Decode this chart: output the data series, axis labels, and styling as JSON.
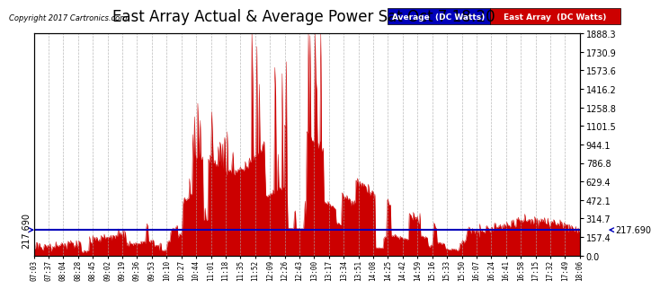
{
  "title": "East Array Actual & Average Power Sat Oct 7 18:20",
  "copyright": "Copyright 2017 Cartronics.com",
  "legend_avg": "Average  (DC Watts)",
  "legend_east": "East Array  (DC Watts)",
  "avg_color": "#0000bb",
  "east_color": "#cc0000",
  "avg_value": 217.69,
  "left_arrow_label": "217.690",
  "right_arrow_label": "217.690",
  "y_max": 1888.3,
  "y_min": 0.0,
  "y_ticks": [
    0.0,
    157.4,
    314.7,
    472.1,
    629.4,
    786.8,
    944.1,
    1101.5,
    1258.8,
    1416.2,
    1573.6,
    1730.9,
    1888.3
  ],
  "background_color": "#ffffff",
  "grid_color": "#aaaaaa",
  "title_fontsize": 12,
  "x_labels": [
    "07:03",
    "07:37",
    "08:04",
    "08:28",
    "08:45",
    "09:02",
    "09:19",
    "09:36",
    "09:53",
    "10:10",
    "10:27",
    "10:44",
    "11:01",
    "11:18",
    "11:35",
    "11:52",
    "12:09",
    "12:26",
    "12:43",
    "13:00",
    "13:17",
    "13:34",
    "13:51",
    "14:08",
    "14:25",
    "14:42",
    "14:59",
    "15:16",
    "15:33",
    "15:50",
    "16:07",
    "16:24",
    "16:41",
    "16:58",
    "17:15",
    "17:32",
    "17:49",
    "18:06"
  ],
  "legend_avg_bg": "#0000bb",
  "legend_east_bg": "#cc0000"
}
